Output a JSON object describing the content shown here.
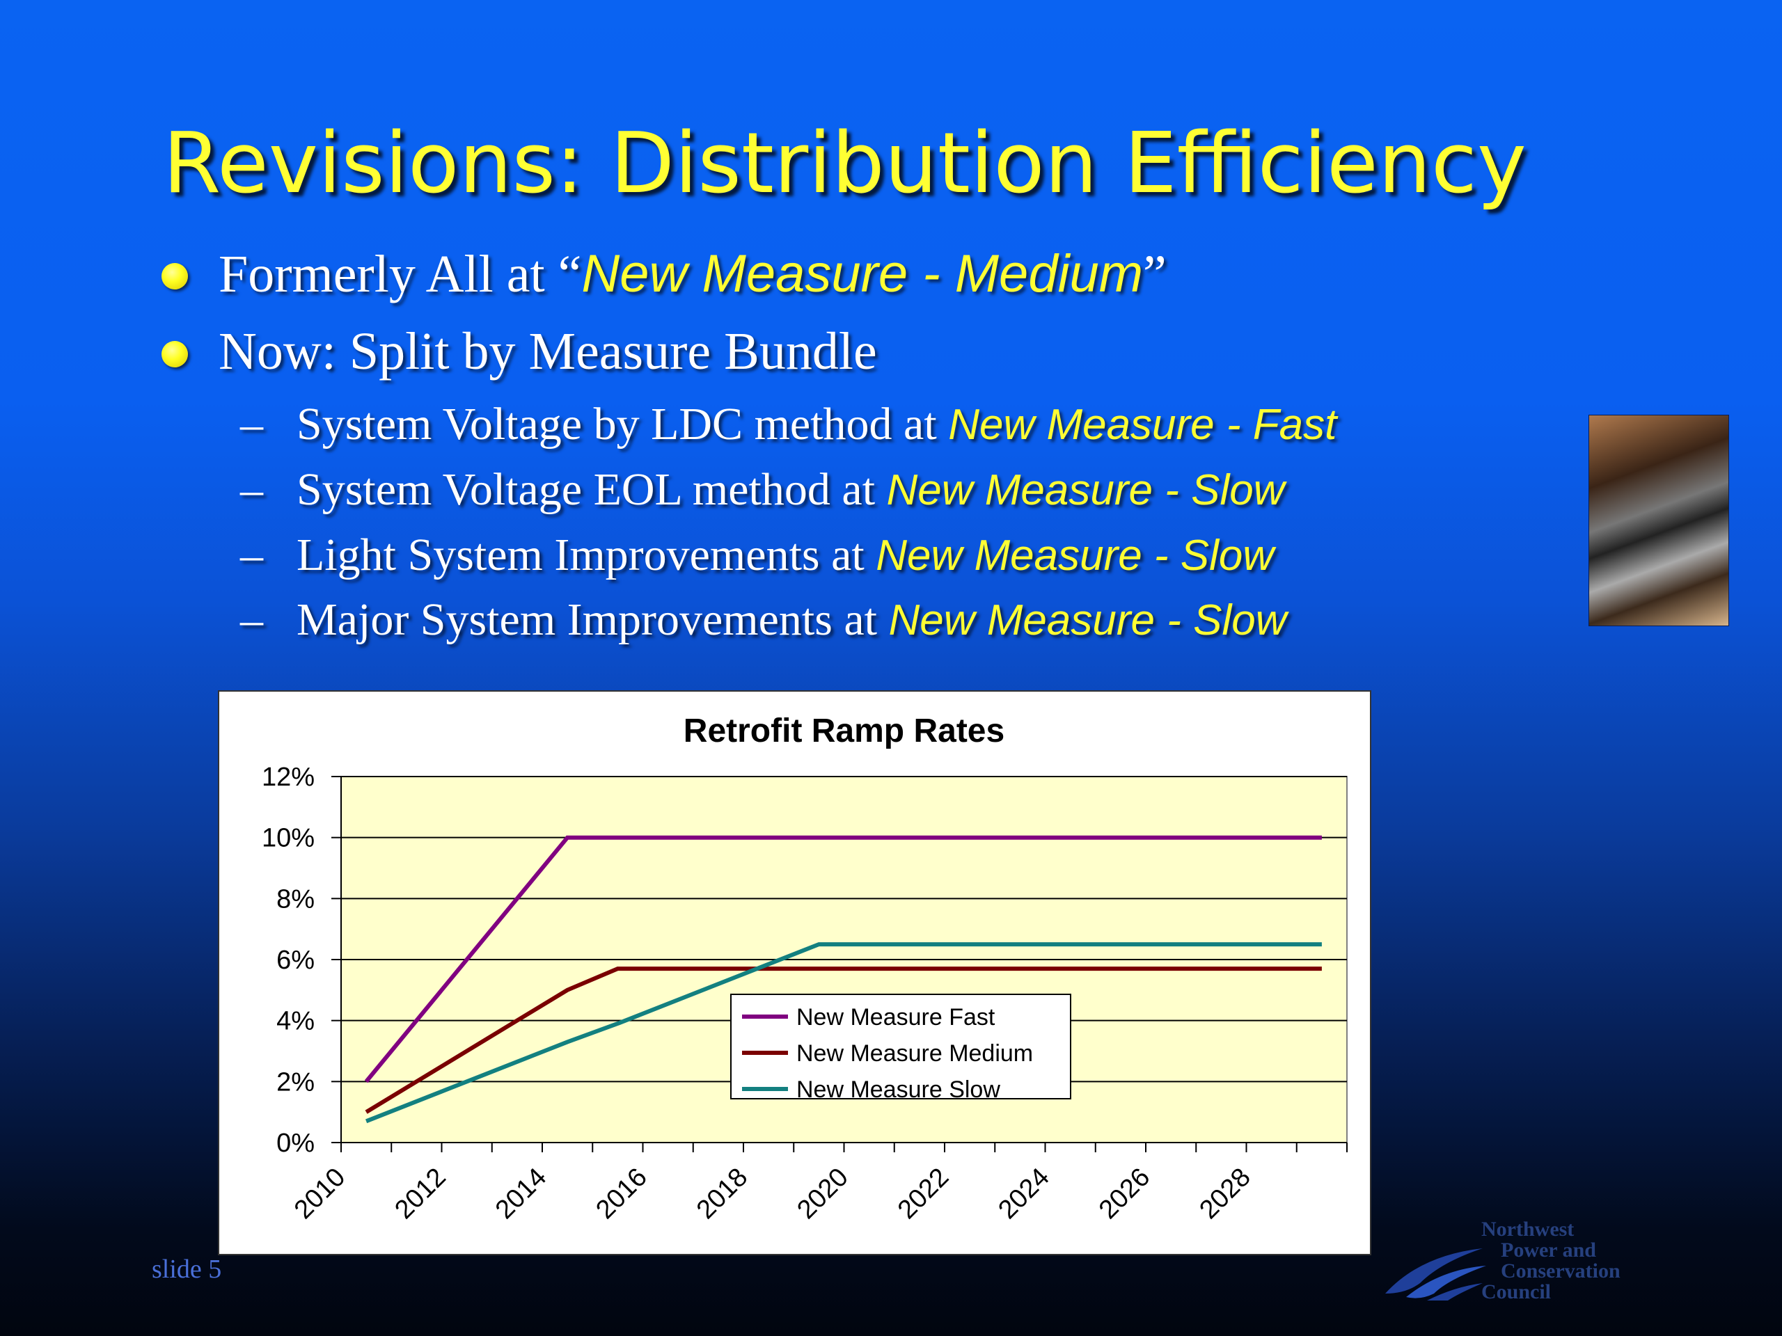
{
  "slide": {
    "title": "Revisions: Distribution Efficiency",
    "bullets": [
      {
        "prefix": "Formerly All at “",
        "highlight": "New Measure - Medium",
        "suffix": "”"
      },
      {
        "prefix": "Now:  Split by Measure Bundle",
        "highlight": "",
        "suffix": ""
      }
    ],
    "sub_bullets": [
      {
        "dash": "–",
        "prefix": "System Voltage by LDC method at ",
        "highlight": "New Measure - Fast"
      },
      {
        "dash": "–",
        "prefix": "System Voltage EOL method at ",
        "highlight": "New Measure - Slow"
      },
      {
        "dash": "–",
        "prefix": "Light System Improvements at ",
        "highlight": "New Measure - Slow"
      },
      {
        "dash": "–",
        "prefix": "Major System Improvements at ",
        "highlight": "New Measure - Slow"
      }
    ],
    "slide_label": "slide 5",
    "logo_lines": [
      "Northwest",
      "Power and",
      "Conservation",
      "Council"
    ]
  },
  "colors": {
    "title": "#ffff33",
    "plot_background": "#ffffcc",
    "fast": "#800080",
    "medium": "#7a0000",
    "slow": "#138080"
  },
  "chart_data": {
    "type": "line",
    "title": "Retrofit Ramp Rates",
    "xlabel": "",
    "ylabel": "",
    "xlim": [
      2010,
      2030
    ],
    "ylim": [
      0,
      0.12
    ],
    "y_ticks": [
      0,
      0.02,
      0.04,
      0.06,
      0.08,
      0.1,
      0.12
    ],
    "y_tick_labels": [
      "0%",
      "2%",
      "4%",
      "6%",
      "8%",
      "10%",
      "12%"
    ],
    "x_tick_labels": [
      "2010",
      "2012",
      "2014",
      "2016",
      "2018",
      "2020",
      "2022",
      "2024",
      "2026",
      "2028"
    ],
    "grid": true,
    "legend_position": "center",
    "series": [
      {
        "name": "New Measure Fast",
        "x": [
          2010.5,
          2014.5,
          2029.5
        ],
        "y": [
          0.02,
          0.1,
          0.1
        ]
      },
      {
        "name": "New Measure Medium",
        "x": [
          2010.5,
          2014.5,
          2015.5,
          2029.5
        ],
        "y": [
          0.01,
          0.05,
          0.057,
          0.057
        ]
      },
      {
        "name": "New Measure Slow",
        "x": [
          2010.5,
          2014.5,
          2015.5,
          2019.5,
          2029.5
        ],
        "y": [
          0.007,
          0.033,
          0.039,
          0.065,
          0.065
        ]
      }
    ]
  }
}
